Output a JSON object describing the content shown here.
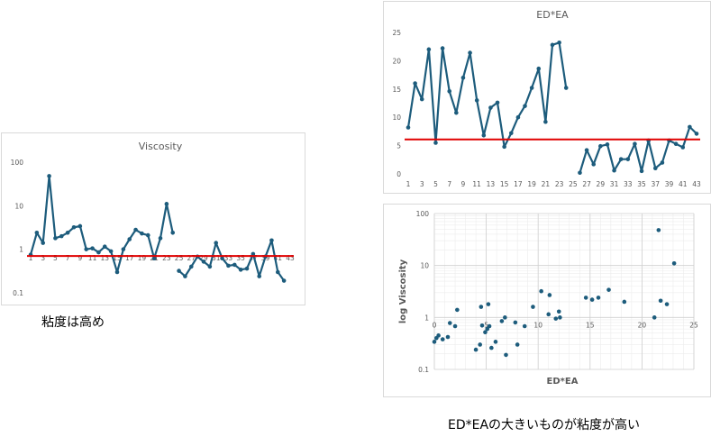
{
  "colors": {
    "series": "#1d5c7c",
    "threshold": "#e00000",
    "grid": "#d9d9d9",
    "axis_text": "#595959",
    "title_text": "#595959"
  },
  "captions": {
    "left": "粘度は高め",
    "right": "ED*EAの大きいものが粘度が高い"
  },
  "chart_data": [
    {
      "id": "viscosity",
      "type": "line",
      "title": "Viscosity",
      "yscale": "log",
      "ylim": [
        0.1,
        100
      ],
      "yticks": [
        "0.1",
        "1",
        "10",
        "100"
      ],
      "x": [
        1,
        2,
        3,
        4,
        5,
        6,
        7,
        8,
        9,
        10,
        11,
        12,
        13,
        14,
        15,
        16,
        17,
        18,
        19,
        20,
        21,
        22,
        23,
        24,
        25,
        26,
        27,
        28,
        29,
        30,
        31,
        32,
        33,
        34,
        35,
        36,
        37,
        38,
        39,
        40,
        41,
        42,
        43
      ],
      "xtick_labels": [
        "1",
        "3",
        "5",
        "7",
        "9",
        "11",
        "13",
        "15",
        "17",
        "19",
        "21",
        "23",
        "25",
        "27",
        "29",
        "31",
        "33",
        "35",
        "37",
        "39",
        "41",
        "43"
      ],
      "series": [
        {
          "name": "",
          "segments": [
            [
              [
                1,
                0.75
              ],
              [
                2,
                2.4
              ],
              [
                3,
                1.4
              ],
              [
                4,
                48
              ],
              [
                5,
                1.8
              ],
              [
                6,
                2.0
              ],
              [
                7,
                2.4
              ],
              [
                8,
                3.2
              ],
              [
                9,
                3.4
              ],
              [
                10,
                1.0
              ],
              [
                11,
                1.05
              ],
              [
                12,
                0.85
              ],
              [
                13,
                1.15
              ],
              [
                14,
                0.9
              ],
              [
                15,
                0.3
              ],
              [
                16,
                1.0
              ],
              [
                17,
                1.7
              ],
              [
                18,
                2.8
              ],
              [
                19,
                2.3
              ],
              [
                20,
                2.1
              ],
              [
                21,
                0.62
              ],
              [
                22,
                1.8
              ],
              [
                23,
                11
              ],
              [
                24,
                2.4
              ]
            ],
            [
              [
                25,
                0.32
              ],
              [
                26,
                0.24
              ],
              [
                27,
                0.4
              ],
              [
                28,
                0.68
              ],
              [
                29,
                0.52
              ],
              [
                30,
                0.4
              ],
              [
                31,
                1.4
              ],
              [
                32,
                0.62
              ],
              [
                33,
                0.42
              ],
              [
                34,
                0.44
              ],
              [
                35,
                0.34
              ],
              [
                36,
                0.36
              ],
              [
                37,
                0.78
              ],
              [
                38,
                0.24
              ],
              [
                39,
                0.68
              ],
              [
                40,
                1.6
              ],
              [
                41,
                0.3
              ],
              [
                42,
                0.19
              ]
            ]
          ]
        }
      ],
      "threshold": 0.7
    },
    {
      "id": "edea",
      "type": "line",
      "title": "ED*EA",
      "ylim": [
        0,
        25
      ],
      "yticks": [
        "0",
        "5",
        "10",
        "15",
        "20",
        "25"
      ],
      "x": [
        1,
        2,
        3,
        4,
        5,
        6,
        7,
        8,
        9,
        10,
        11,
        12,
        13,
        14,
        15,
        16,
        17,
        18,
        19,
        20,
        21,
        22,
        23,
        24,
        25,
        26,
        27,
        28,
        29,
        30,
        31,
        32,
        33,
        34,
        35,
        36,
        37,
        38,
        39,
        40,
        41,
        42,
        43
      ],
      "xtick_labels": [
        "1",
        "3",
        "5",
        "7",
        "9",
        "11",
        "13",
        "15",
        "17",
        "19",
        "21",
        "23",
        "25",
        "27",
        "29",
        "31",
        "33",
        "35",
        "37",
        "39",
        "41",
        "43"
      ],
      "series": [
        {
          "name": "",
          "segments": [
            [
              [
                1,
                8.2
              ],
              [
                2,
                16
              ],
              [
                3,
                13.2
              ],
              [
                4,
                22
              ],
              [
                5,
                5.5
              ],
              [
                6,
                22.2
              ],
              [
                7,
                14.6
              ],
              [
                8,
                10.8
              ],
              [
                9,
                17
              ],
              [
                10,
                21.4
              ],
              [
                11,
                13
              ],
              [
                12,
                6.8
              ],
              [
                13,
                11.7
              ],
              [
                14,
                12.6
              ],
              [
                15,
                4.8
              ],
              [
                16,
                7.2
              ],
              [
                17,
                10
              ],
              [
                18,
                12
              ],
              [
                19,
                15.2
              ],
              [
                20,
                18.6
              ],
              [
                21,
                9.2
              ],
              [
                22,
                22.8
              ],
              [
                23,
                23.2
              ],
              [
                24,
                15.2
              ]
            ],
            [
              [
                26,
                0.2
              ],
              [
                27,
                4.2
              ],
              [
                28,
                1.7
              ],
              [
                29,
                4.9
              ],
              [
                30,
                5.2
              ],
              [
                31,
                0.6
              ],
              [
                32,
                2.6
              ],
              [
                33,
                2.6
              ],
              [
                34,
                5.3
              ],
              [
                35,
                0.5
              ],
              [
                36,
                5.9
              ],
              [
                37,
                1.0
              ],
              [
                38,
                2.0
              ],
              [
                39,
                5.9
              ],
              [
                40,
                5.3
              ],
              [
                41,
                4.7
              ],
              [
                42,
                8.3
              ],
              [
                43,
                7.1
              ]
            ]
          ]
        }
      ],
      "threshold": 6.1
    },
    {
      "id": "scatter",
      "type": "scatter",
      "title": "",
      "xlabel": "ED*EA",
      "ylabel": "log Viscosity",
      "xlim": [
        0,
        25
      ],
      "xticks": [
        "0",
        "5",
        "10",
        "15",
        "20",
        "25"
      ],
      "yscale": "log",
      "ylim": [
        0.1,
        100
      ],
      "yticks": [
        "0.1",
        "1",
        "10",
        "100"
      ],
      "points": [
        [
          0.0,
          0.34
        ],
        [
          0.2,
          0.4
        ],
        [
          0.4,
          0.45
        ],
        [
          0.8,
          0.38
        ],
        [
          1.3,
          0.42
        ],
        [
          1.5,
          0.78
        ],
        [
          2.0,
          0.68
        ],
        [
          2.2,
          1.4
        ],
        [
          4.0,
          0.24
        ],
        [
          4.4,
          0.3
        ],
        [
          4.5,
          1.6
        ],
        [
          4.6,
          0.7
        ],
        [
          4.9,
          0.52
        ],
        [
          5.1,
          0.6
        ],
        [
          5.2,
          1.8
        ],
        [
          5.3,
          0.68
        ],
        [
          5.5,
          0.26
        ],
        [
          5.9,
          0.34
        ],
        [
          6.5,
          0.85
        ],
        [
          6.8,
          1.0
        ],
        [
          6.9,
          0.19
        ],
        [
          7.8,
          0.8
        ],
        [
          8.0,
          0.3
        ],
        [
          8.7,
          0.68
        ],
        [
          9.5,
          1.6
        ],
        [
          10.3,
          3.2
        ],
        [
          11.0,
          1.15
        ],
        [
          11.1,
          2.7
        ],
        [
          11.7,
          0.95
        ],
        [
          12.0,
          1.3
        ],
        [
          12.1,
          1.0
        ],
        [
          14.6,
          2.4
        ],
        [
          15.2,
          2.2
        ],
        [
          15.8,
          2.4
        ],
        [
          16.8,
          3.4
        ],
        [
          18.3,
          2.0
        ],
        [
          21.2,
          1.0
        ],
        [
          21.6,
          48
        ],
        [
          21.8,
          2.1
        ],
        [
          22.4,
          1.8
        ],
        [
          23.1,
          11
        ]
      ]
    }
  ]
}
